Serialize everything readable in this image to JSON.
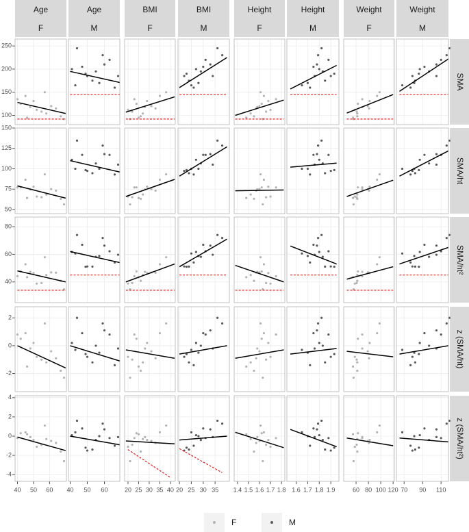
{
  "chart_data": {
    "type": "facet-scatter",
    "predictors": [
      "Age",
      "BMI",
      "Height",
      "Weight"
    ],
    "groups": [
      {
        "name": "F",
        "color": "#b3b3b3",
        "predictors": [
          [
            42,
            48,
            55,
            61,
            67,
            45,
            52,
            58,
            40,
            64,
            50,
            46,
            57,
            69
          ],
          [
            24,
            28,
            22,
            31,
            26,
            35,
            20,
            27,
            23,
            33,
            29,
            25,
            38,
            21
          ],
          [
            1.62,
            1.58,
            1.66,
            1.6,
            1.55,
            1.64,
            1.7,
            1.52,
            1.75,
            1.57,
            1.68,
            1.48,
            1.61,
            1.63
          ],
          [
            63,
            70,
            61,
            79,
            62,
            94,
            58,
            62,
            70,
            81,
            82,
            55,
            98,
            56
          ]
        ],
        "outcomes": [
          [
            125,
            118,
            108,
            120,
            98,
            142,
            112,
            104,
            135,
            115,
            131,
            95,
            150,
            92
          ],
          [
            77.2,
            74.7,
            65.1,
            75.0,
            63.2,
            86.6,
            65.9,
            68.4,
            77.1,
            73.2,
            78.0,
            64.2,
            93.2,
            56.4
          ],
          [
            47.6,
            47.3,
            39.2,
            46.9,
            40.8,
            52.8,
            38.8,
            45.0,
            44.1,
            46.7,
            46.4,
            43.4,
            57.9,
            34.6
          ],
          [
            0.5,
            -0.2,
            -1.0,
            -0.4,
            -1.8,
            0.9,
            -0.8,
            -1.2,
            0.8,
            -0.9,
            0.2,
            -1.5,
            1.6,
            -2.3
          ],
          [
            0.3,
            -0.1,
            -0.9,
            -0.5,
            -1.6,
            0.4,
            -1.1,
            -0.3,
            -0.2,
            -0.7,
            -0.4,
            0.2,
            1.1,
            -2.6
          ]
        ]
      },
      {
        "name": "M",
        "color": "#595959",
        "predictors": [
          [
            41,
            47,
            53,
            60,
            66,
            44,
            50,
            57,
            63,
            43,
            55,
            68,
            49,
            59
          ],
          [
            27,
            30,
            24,
            33,
            26,
            36,
            22,
            28,
            31,
            25,
            29,
            34,
            23,
            38
          ],
          [
            1.8,
            1.75,
            1.85,
            1.78,
            1.72,
            1.82,
            1.9,
            1.7,
            1.88,
            1.65,
            1.83,
            1.76,
            1.93,
            1.79
          ],
          [
            87,
            92,
            82,
            105,
            77,
            119,
            79,
            81,
            110,
            68,
            97,
            105,
            86,
            116
          ]
        ],
        "outcomes": [
          [
            200,
            205,
            175,
            210,
            160,
            245,
            185,
            170,
            220,
            165,
            195,
            185,
            190,
            230
          ],
          [
            111.1,
            117.1,
            94.6,
            118.0,
            93.0,
            134.6,
            97.4,
            100.0,
            117.0,
            100.0,
            106.6,
            105.1,
            98.4,
            128.5
          ],
          [
            61.7,
            66.9,
            51.1,
            66.3,
            54.1,
            74.0,
            51.2,
            58.8,
            62.2,
            60.6,
            58.2,
            59.7,
            51.0,
            71.8
          ],
          [
            0.2,
            0.9,
            -1.2,
            1.1,
            -1.4,
            2.0,
            -0.8,
            -0.5,
            0.8,
            -0.3,
            0.0,
            -0.2,
            -0.6,
            1.6
          ],
          [
            0.1,
            0.8,
            -1.4,
            0.7,
            -1.0,
            1.6,
            -1.5,
            0.0,
            -0.2,
            0.4,
            -0.4,
            -0.1,
            -1.2,
            1.3
          ]
        ]
      }
    ],
    "columns": [
      {
        "predictor": 0,
        "group": 0,
        "xlim": [
          38.5,
          70.5
        ],
        "xticks": [
          40,
          50,
          60
        ]
      },
      {
        "predictor": 0,
        "group": 1,
        "xlim": [
          39,
          69
        ],
        "xticks": [
          40,
          50,
          60
        ]
      },
      {
        "predictor": 1,
        "group": 0,
        "xlim": [
          18.4,
          42.3
        ],
        "xticks": [
          20,
          25,
          30,
          35,
          40
        ]
      },
      {
        "predictor": 1,
        "group": 1,
        "xlim": [
          19.4,
          41
        ],
        "xticks": [
          20,
          25,
          30,
          35
        ]
      },
      {
        "predictor": 2,
        "group": 0,
        "xlim": [
          1.37,
          1.83
        ],
        "xticks": [
          1.4,
          1.5,
          1.6,
          1.7,
          1.8
        ]
      },
      {
        "predictor": 2,
        "group": 1,
        "xlim": [
          1.52,
          1.97
        ],
        "xticks": [
          1.6,
          1.7,
          1.8,
          1.9
        ]
      },
      {
        "predictor": 3,
        "group": 0,
        "xlim": [
          40,
          122
        ],
        "xticks": [
          60,
          80,
          100,
          120
        ]
      },
      {
        "predictor": 3,
        "group": 1,
        "xlim": [
          61.7,
          118
        ],
        "xticks": [
          70,
          90,
          110
        ]
      }
    ],
    "rows": [
      {
        "label": "SMA",
        "ylim": [
          80,
          265
        ],
        "yticks": [
          100,
          150,
          200,
          250
        ]
      },
      {
        "label": "SMA/ht",
        "ylim": [
          45,
          150
        ],
        "yticks": [
          50,
          75,
          100,
          125,
          150
        ]
      },
      {
        "label": "SMA/ht²",
        "ylim": [
          25,
          87
        ],
        "yticks": [
          40,
          60,
          80
        ]
      },
      {
        "label": "z (SMA/ht)",
        "ylim": [
          -3.3,
          2.8
        ],
        "yticks": [
          -2,
          0,
          2
        ]
      },
      {
        "label": "z (SMA/ht²)",
        "ylim": [
          -4.7,
          4.2
        ],
        "yticks": [
          -4,
          -2,
          0,
          2,
          4
        ]
      }
    ],
    "panels": [
      {
        "fit": {
          "x": [
            40,
            70
          ],
          "y": [
            128,
            104
          ]
        },
        "cutoff": {
          "x": [
            40,
            70
          ],
          "y": [
            92,
            92
          ]
        }
      },
      {
        "fit": {
          "x": [
            40,
            69
          ],
          "y": [
            195,
            171
          ]
        },
        "cutoff": {
          "x": [
            40,
            69
          ],
          "y": [
            145,
            145
          ]
        }
      },
      {
        "fit": {
          "x": [
            19,
            42
          ],
          "y": [
            107,
            140
          ]
        },
        "cutoff": {
          "x": [
            19,
            42
          ],
          "y": [
            92,
            92
          ]
        }
      },
      {
        "fit": {
          "x": [
            20,
            40
          ],
          "y": [
            160,
            225
          ]
        },
        "cutoff": {
          "x": [
            20,
            40
          ],
          "y": [
            145,
            145
          ]
        }
      },
      {
        "fit": {
          "x": [
            1.38,
            1.82
          ],
          "y": [
            100,
            133
          ]
        },
        "cutoff": {
          "x": [
            1.38,
            1.82
          ],
          "y": [
            92,
            92
          ]
        }
      },
      {
        "fit": {
          "x": [
            1.55,
            1.95
          ],
          "y": [
            157,
            208
          ]
        },
        "cutoff": {
          "x": [
            1.55,
            1.95
          ],
          "y": [
            145,
            145
          ]
        }
      },
      {
        "fit": {
          "x": [
            45,
            120
          ],
          "y": [
            105,
            145
          ]
        },
        "cutoff": {
          "x": [
            45,
            120
          ],
          "y": [
            92,
            92
          ]
        }
      },
      {
        "fit": {
          "x": [
            65,
            118
          ],
          "y": [
            152,
            222
          ]
        },
        "cutoff": {
          "x": [
            65,
            118
          ],
          "y": [
            145,
            145
          ]
        }
      },
      {
        "fit": {
          "x": [
            40,
            70
          ],
          "y": [
            79,
            64
          ]
        }
      },
      {
        "fit": {
          "x": [
            40,
            69
          ],
          "y": [
            110,
            96
          ]
        }
      },
      {
        "fit": {
          "x": [
            19,
            42
          ],
          "y": [
            66,
            87
          ]
        }
      },
      {
        "fit": {
          "x": [
            20,
            40
          ],
          "y": [
            91,
            127
          ]
        }
      },
      {
        "fit": {
          "x": [
            1.38,
            1.82
          ],
          "y": [
            73,
            74
          ]
        }
      },
      {
        "fit": {
          "x": [
            1.55,
            1.95
          ],
          "y": [
            102,
            107
          ]
        }
      },
      {
        "fit": {
          "x": [
            45,
            120
          ],
          "y": [
            66,
            86
          ]
        }
      },
      {
        "fit": {
          "x": [
            65,
            118
          ],
          "y": [
            91,
            122
          ]
        }
      },
      {
        "fit": {
          "x": [
            40,
            70
          ],
          "y": [
            48,
            40
          ]
        },
        "cutoff": {
          "x": [
            40,
            70
          ],
          "y": [
            34,
            34
          ]
        }
      },
      {
        "fit": {
          "x": [
            40,
            69
          ],
          "y": [
            62,
            54
          ]
        },
        "cutoff": {
          "x": [
            40,
            69
          ],
          "y": [
            45,
            45
          ]
        }
      },
      {
        "fit": {
          "x": [
            19,
            42
          ],
          "y": [
            40,
            53
          ]
        },
        "cutoff": {
          "x": [
            19,
            42
          ],
          "y": [
            34,
            34
          ]
        }
      },
      {
        "fit": {
          "x": [
            20,
            40
          ],
          "y": [
            51,
            71
          ]
        },
        "cutoff": {
          "x": [
            20,
            40
          ],
          "y": [
            45,
            45
          ]
        }
      },
      {
        "fit": {
          "x": [
            1.38,
            1.82
          ],
          "y": [
            52,
            40
          ]
        },
        "cutoff": {
          "x": [
            1.38,
            1.82
          ],
          "y": [
            34,
            34
          ]
        }
      },
      {
        "fit": {
          "x": [
            1.55,
            1.95
          ],
          "y": [
            66,
            53
          ]
        },
        "cutoff": {
          "x": [
            1.55,
            1.95
          ],
          "y": [
            45,
            45
          ]
        }
      },
      {
        "fit": {
          "x": [
            45,
            120
          ],
          "y": [
            42,
            51
          ]
        },
        "cutoff": {
          "x": [
            45,
            120
          ],
          "y": [
            34,
            34
          ]
        }
      },
      {
        "fit": {
          "x": [
            65,
            118
          ],
          "y": [
            53,
            65
          ]
        },
        "cutoff": {
          "x": [
            65,
            118
          ],
          "y": [
            45,
            45
          ]
        }
      },
      {
        "fit": {
          "x": [
            40,
            70
          ],
          "y": [
            0,
            -1.6
          ]
        }
      },
      {
        "fit": {
          "x": [
            40,
            69
          ],
          "y": [
            0,
            -1.1
          ]
        }
      },
      {
        "fit": {
          "x": [
            19,
            42
          ],
          "y": [
            -0.3,
            -0.9
          ]
        }
      },
      {
        "fit": {
          "x": [
            20,
            40
          ],
          "y": [
            -0.6,
            0
          ]
        }
      },
      {
        "fit": {
          "x": [
            1.38,
            1.82
          ],
          "y": [
            -0.9,
            -0.3
          ]
        }
      },
      {
        "fit": {
          "x": [
            1.55,
            1.95
          ],
          "y": [
            -0.6,
            -0.2
          ]
        }
      },
      {
        "fit": {
          "x": [
            45,
            120
          ],
          "y": [
            -0.4,
            -0.8
          ]
        }
      },
      {
        "fit": {
          "x": [
            65,
            118
          ],
          "y": [
            -0.6,
            0
          ]
        }
      },
      {
        "fit": {
          "x": [
            40,
            70
          ],
          "y": [
            -0.1,
            -1.5
          ]
        }
      },
      {
        "fit": {
          "x": [
            40,
            69
          ],
          "y": [
            0,
            -0.9
          ]
        }
      },
      {
        "fit": {
          "x": [
            19,
            42
          ],
          "y": [
            -0.5,
            -0.8
          ]
        },
        "cutoff": {
          "x": [
            20,
            40
          ],
          "y": [
            -1.4,
            -4.3
          ]
        }
      },
      {
        "fit": {
          "x": [
            20,
            40
          ],
          "y": [
            -0.4,
            0
          ]
        },
        "cutoff": {
          "x": [
            20,
            38
          ],
          "y": [
            -1.3,
            -3.8
          ]
        }
      },
      {
        "fit": {
          "x": [
            1.38,
            1.82
          ],
          "y": [
            0.4,
            -1.2
          ]
        }
      },
      {
        "fit": {
          "x": [
            1.55,
            1.95
          ],
          "y": [
            0.7,
            -1.1
          ]
        }
      },
      {
        "fit": {
          "x": [
            45,
            120
          ],
          "y": [
            -0.2,
            -1.0
          ]
        }
      },
      {
        "fit": {
          "x": [
            65,
            118
          ],
          "y": [
            -0.2,
            -0.6
          ]
        }
      }
    ]
  }
}
